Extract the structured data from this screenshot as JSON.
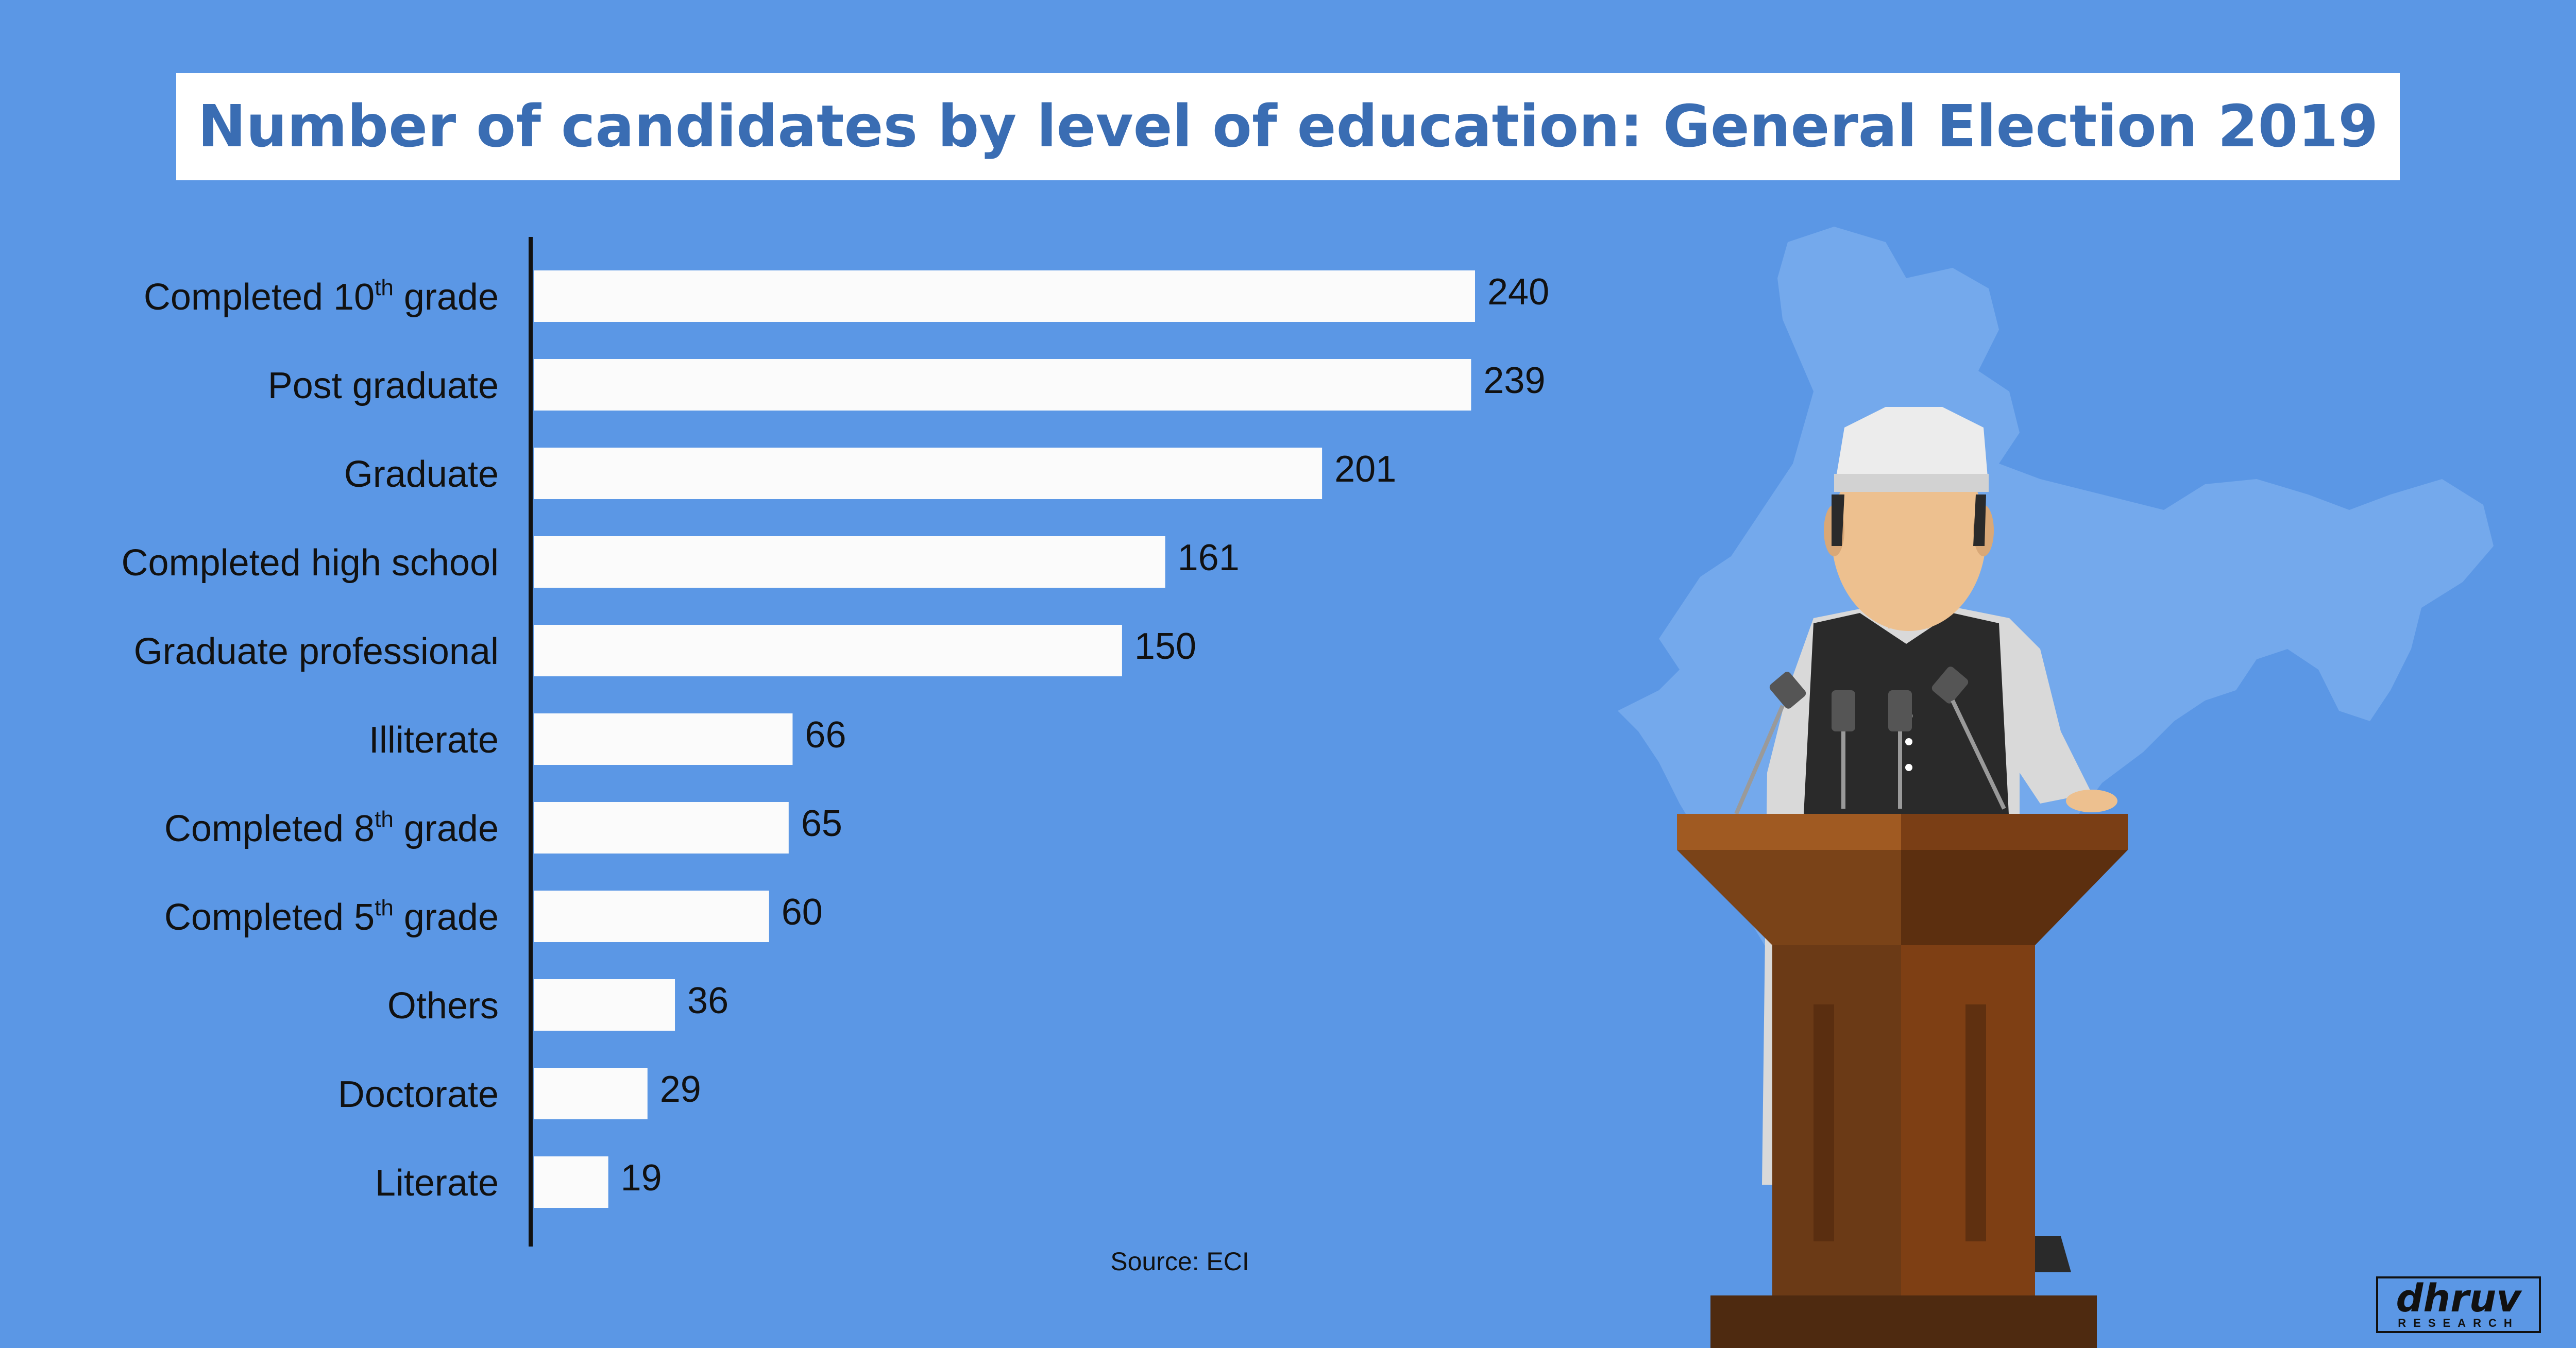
{
  "title": "Number of candidates by level of education: General Election 2019",
  "source": "Source: ECI",
  "logo": {
    "main": "dhruv",
    "sub": "RESEARCH"
  },
  "colors": {
    "background": "#5b97e5",
    "bar": "#fbfbfb",
    "title": "#3a6db3",
    "axis": "#111111",
    "podium_light": "#a05a22",
    "podium_dark": "#6e3612"
  },
  "icons": [
    "india-map-silhouette",
    "politician-at-podium-illustration"
  ],
  "chart_data": {
    "type": "bar",
    "orientation": "horizontal",
    "title": "Number of candidates by level of education: General Election 2019",
    "xlabel": "",
    "ylabel": "",
    "xlim": [
      0,
      240
    ],
    "grid": false,
    "categories": [
      {
        "base": "Completed 10",
        "sup": "th",
        "tail": " grade"
      },
      {
        "base": "Post graduate",
        "sup": "",
        "tail": ""
      },
      {
        "base": "Graduate",
        "sup": "",
        "tail": ""
      },
      {
        "base": "Completed high school",
        "sup": "",
        "tail": ""
      },
      {
        "base": "Graduate professional",
        "sup": "",
        "tail": ""
      },
      {
        "base": "Illiterate",
        "sup": "",
        "tail": ""
      },
      {
        "base": "Completed 8",
        "sup": "th",
        "tail": " grade"
      },
      {
        "base": "Completed 5",
        "sup": "th",
        "tail": " grade"
      },
      {
        "base": "Others",
        "sup": "",
        "tail": ""
      },
      {
        "base": "Doctorate",
        "sup": "",
        "tail": ""
      },
      {
        "base": "Literate",
        "sup": "",
        "tail": ""
      }
    ],
    "values": [
      240,
      239,
      201,
      161,
      150,
      66,
      65,
      60,
      36,
      29,
      19
    ]
  }
}
